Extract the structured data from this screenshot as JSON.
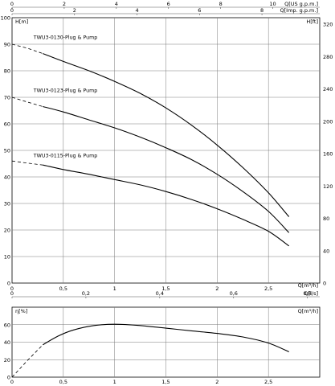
{
  "chart_data": [
    {
      "type": "line",
      "name": "head",
      "xlabel": "Q[m³/h]",
      "ylabel_left": "H[m]",
      "ylabel_right": "H[ft]",
      "xlim": [
        0,
        3.0
      ],
      "ylim": [
        0,
        100
      ],
      "x_ticks": [
        "0",
        "0,5",
        "1",
        "1,5",
        "2",
        "2,5"
      ],
      "y_ticks": [
        "0",
        "10",
        "20",
        "30",
        "40",
        "50",
        "60",
        "70",
        "80",
        "90",
        "100"
      ],
      "right_ticks": [
        "0",
        "40",
        "80",
        "120",
        "160",
        "200",
        "240",
        "280",
        "320"
      ],
      "top_axes": [
        {
          "label": "Q[US g.p.m.]",
          "ticks": [
            "0",
            "2",
            "4",
            "6",
            "8",
            "10"
          ],
          "values": [
            0,
            2,
            4,
            6,
            8,
            10
          ]
        },
        {
          "label": "Q[Imp. g.p.m.]",
          "ticks": [
            "0",
            "2",
            "4",
            "6",
            "8"
          ],
          "values": [
            0,
            2,
            4,
            6,
            8
          ]
        }
      ],
      "flow_axis": {
        "label": "Q[l/s]",
        "ticks": [
          "0",
          "0,2",
          "0,4",
          "0,6",
          "0,8"
        ],
        "values": [
          0,
          0.2,
          0.4,
          0.6,
          0.8
        ]
      },
      "grid": true,
      "series": [
        {
          "name": "TWU3-0130-Plug & Pump",
          "label_at": [
            0.1,
            92
          ],
          "dashed": [
            [
              0.0,
              90
            ],
            [
              0.15,
              88.5
            ],
            [
              0.3,
              86.5
            ]
          ],
          "solid": [
            [
              0.3,
              86.5
            ],
            [
              0.5,
              83.5
            ],
            [
              0.75,
              80
            ],
            [
              1.0,
              76
            ],
            [
              1.25,
              71.5
            ],
            [
              1.5,
              66
            ],
            [
              1.75,
              59.5
            ],
            [
              2.0,
              52
            ],
            [
              2.25,
              43.5
            ],
            [
              2.5,
              34
            ],
            [
              2.7,
              25
            ]
          ]
        },
        {
          "name": "TWU3-0123-Plug & Pump",
          "label_at": [
            0.1,
            72
          ],
          "dashed": [
            [
              0.0,
              70
            ],
            [
              0.15,
              68.2
            ],
            [
              0.3,
              66.5
            ]
          ],
          "solid": [
            [
              0.3,
              66.5
            ],
            [
              0.5,
              64.5
            ],
            [
              0.75,
              61.5
            ],
            [
              1.0,
              58.5
            ],
            [
              1.25,
              55
            ],
            [
              1.5,
              51
            ],
            [
              1.75,
              46.5
            ],
            [
              2.0,
              41
            ],
            [
              2.25,
              34.5
            ],
            [
              2.5,
              27
            ],
            [
              2.7,
              19
            ]
          ]
        },
        {
          "name": "TWU3-0115-Plug & Pump",
          "label_at": [
            0.1,
            47.5
          ],
          "dashed": [
            [
              0.0,
              46
            ],
            [
              0.15,
              45.2
            ],
            [
              0.3,
              44.5
            ]
          ],
          "solid": [
            [
              0.3,
              44.5
            ],
            [
              0.5,
              42.8
            ],
            [
              0.75,
              41
            ],
            [
              1.0,
              39
            ],
            [
              1.25,
              37
            ],
            [
              1.5,
              34.5
            ],
            [
              1.75,
              31.5
            ],
            [
              2.0,
              28
            ],
            [
              2.25,
              24
            ],
            [
              2.5,
              19.5
            ],
            [
              2.7,
              14
            ]
          ]
        }
      ]
    },
    {
      "type": "line",
      "name": "efficiency",
      "xlabel": "Q[m³/h]",
      "ylabel": "η[%]",
      "xlim": [
        0,
        3.0
      ],
      "ylim": [
        0,
        80
      ],
      "x_ticks": [
        "0",
        "0,5",
        "1",
        "1,5",
        "2",
        "2,5"
      ],
      "y_ticks": [
        "0",
        "20",
        "40",
        "60"
      ],
      "grid": true,
      "dashed": [
        [
          0.0,
          0
        ],
        [
          0.15,
          19
        ],
        [
          0.3,
          37
        ]
      ],
      "solid": [
        [
          0.3,
          37
        ],
        [
          0.45,
          47
        ],
        [
          0.6,
          54
        ],
        [
          0.8,
          59
        ],
        [
          1.0,
          60.5
        ],
        [
          1.25,
          59
        ],
        [
          1.5,
          56
        ],
        [
          1.75,
          53
        ],
        [
          2.0,
          50
        ],
        [
          2.25,
          46
        ],
        [
          2.5,
          39
        ],
        [
          2.7,
          29
        ]
      ]
    }
  ]
}
